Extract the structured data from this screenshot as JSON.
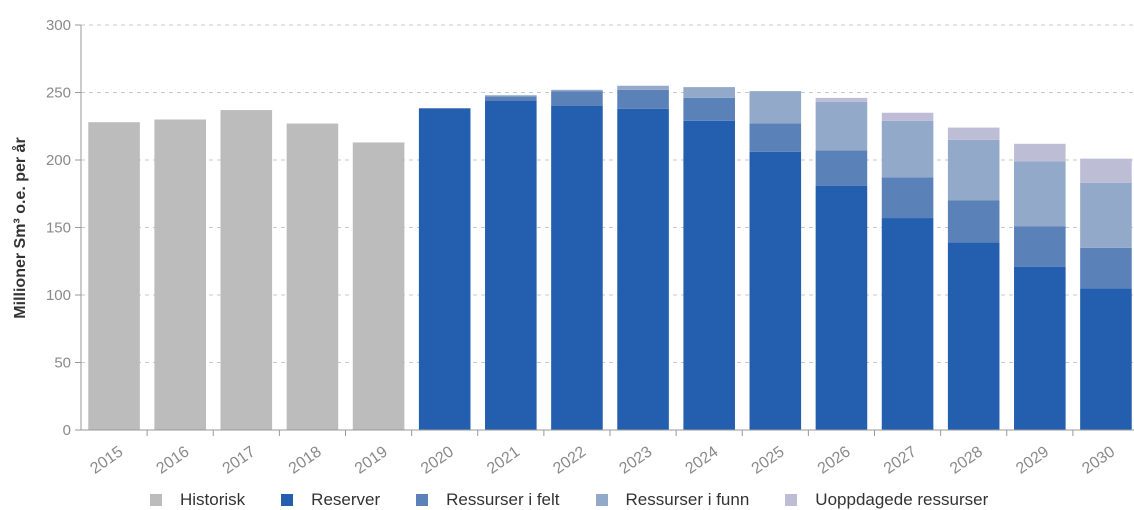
{
  "chart_data": {
    "type": "bar",
    "stacked": true,
    "categories": [
      "2015",
      "2016",
      "2017",
      "2018",
      "2019",
      "2020",
      "2021",
      "2022",
      "2023",
      "2024",
      "2025",
      "2026",
      "2027",
      "2028",
      "2029",
      "2030"
    ],
    "series": [
      {
        "name": "Historisk",
        "color": "#bcbcbc",
        "values": [
          228,
          230,
          237,
          227,
          213,
          0,
          0,
          0,
          0,
          0,
          0,
          0,
          0,
          0,
          0,
          0
        ]
      },
      {
        "name": "Reserver",
        "color": "#245eae",
        "values": [
          0,
          0,
          0,
          0,
          0,
          238,
          244,
          240,
          238,
          229,
          206,
          181,
          157,
          139,
          121,
          105
        ]
      },
      {
        "name": "Ressurser i felt",
        "color": "#5b82b8",
        "values": [
          0,
          0,
          0,
          0,
          0,
          0.5,
          3,
          11,
          14,
          17,
          21,
          26,
          30,
          31,
          30,
          30
        ]
      },
      {
        "name": "Ressurser i funn",
        "color": "#93a9c9",
        "values": [
          0,
          0,
          0,
          0,
          0,
          0,
          1,
          1,
          3,
          8,
          24,
          36,
          42,
          45,
          48,
          48
        ]
      },
      {
        "name": "Uoppdagede ressurser",
        "color": "#bdbdd6",
        "values": [
          0,
          0,
          0,
          0,
          0,
          0,
          0,
          0,
          0,
          0,
          0,
          3,
          6,
          9,
          13,
          18
        ]
      }
    ],
    "title": "",
    "xlabel": "",
    "ylabel": "Millioner Sm³ o.e. per år",
    "ylim": [
      0,
      300
    ],
    "yticks": [
      "0",
      "50",
      "100",
      "150",
      "200",
      "250",
      "300"
    ],
    "grid": true,
    "legend": "bottom"
  }
}
